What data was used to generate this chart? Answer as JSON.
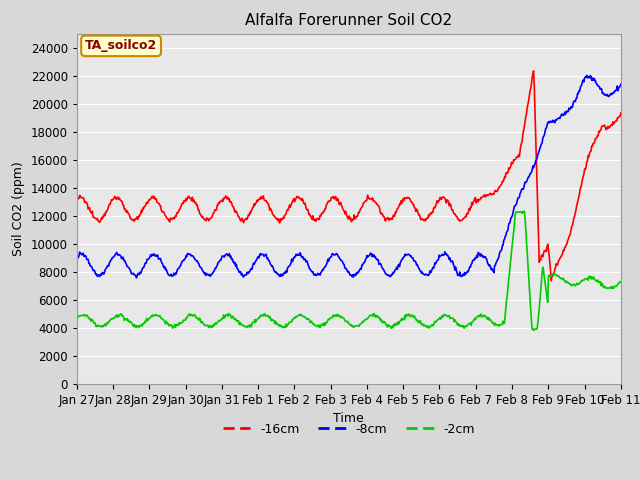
{
  "title": "Alfalfa Forerunner Soil CO2",
  "xlabel": "Time",
  "ylabel": "Soil CO2 (ppm)",
  "legend_label": "TA_soilco2",
  "series_labels": [
    "-16cm",
    "-8cm",
    "-2cm"
  ],
  "series_colors": [
    "#ff0000",
    "#0000ff",
    "#00cc00"
  ],
  "ylim": [
    0,
    25000
  ],
  "yticks": [
    0,
    2000,
    4000,
    6000,
    8000,
    10000,
    12000,
    14000,
    16000,
    18000,
    20000,
    22000,
    24000
  ],
  "xtick_labels": [
    "Jan 27",
    "Jan 28",
    "Jan 29",
    "Jan 30",
    "Jan 31",
    "Feb 1",
    "Feb 2",
    "Feb 3",
    "Feb 4",
    "Feb 5",
    "Feb 6",
    "Feb 7",
    "Feb 8",
    "Feb 9",
    "Feb 10",
    "Feb 11"
  ],
  "fig_bg_color": "#d8d8d8",
  "plot_bg_color": "#e8e8e8",
  "grid_color": "#ffffff",
  "title_fontsize": 11,
  "axis_fontsize": 9,
  "tick_fontsize": 8.5,
  "legend_fontsize": 9,
  "annotation_fontsize": 9,
  "linewidth": 1.2
}
